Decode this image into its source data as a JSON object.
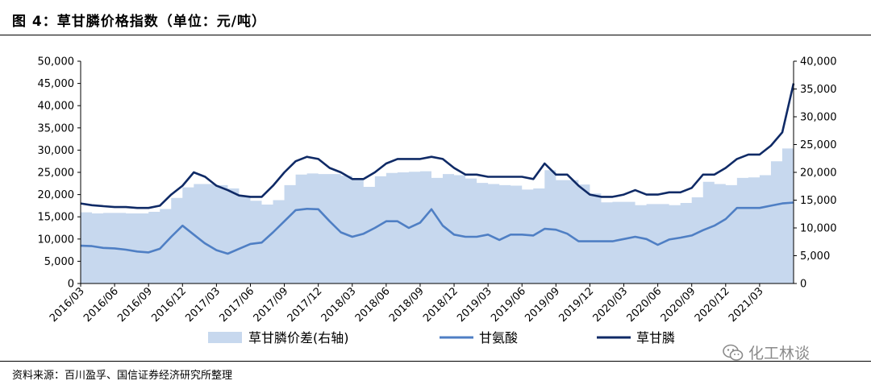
{
  "header": {
    "title": "图 4：草甘膦价格指数（单位：元/吨）"
  },
  "footer": {
    "source": "资料来源：百川盈孚、国信证券经济研究所整理"
  },
  "watermark": {
    "text": "化工林谈",
    "icon": "wechat-icon"
  },
  "colors": {
    "area": "#c7d8ee",
    "glycine": "#4f7fc4",
    "glyphosate": "#0f2a66"
  },
  "chart_data": {
    "type": "line",
    "x_type": "date",
    "x": [
      "2016/03",
      "2016/04",
      "2016/05",
      "2016/06",
      "2016/07",
      "2016/08",
      "2016/09",
      "2016/10",
      "2016/11",
      "2016/12",
      "2017/01",
      "2017/02",
      "2017/03",
      "2017/04",
      "2017/05",
      "2017/06",
      "2017/07",
      "2017/08",
      "2017/09",
      "2017/10",
      "2017/11",
      "2017/12",
      "2018/01",
      "2018/02",
      "2018/03",
      "2018/04",
      "2018/05",
      "2018/06",
      "2018/07",
      "2018/08",
      "2018/09",
      "2018/10",
      "2018/11",
      "2018/12",
      "2019/01",
      "2019/02",
      "2019/03",
      "2019/04",
      "2019/05",
      "2019/06",
      "2019/07",
      "2019/08",
      "2019/09",
      "2019/10",
      "2019/11",
      "2019/12",
      "2020/01",
      "2020/02",
      "2020/03",
      "2020/04",
      "2020/05",
      "2020/06",
      "2020/07",
      "2020/08",
      "2020/09",
      "2020/10",
      "2020/11",
      "2020/12",
      "2021/01",
      "2021/02",
      "2021/03",
      "2021/04",
      "2021/05",
      "2021/06"
    ],
    "x_tick_labels": [
      "2016/03",
      "2016/06",
      "2016/09",
      "2016/12",
      "2017/03",
      "2017/06",
      "2017/09",
      "2017/12",
      "2018/03",
      "2018/06",
      "2018/09",
      "2018/12",
      "2019/03",
      "2019/06",
      "2019/09",
      "2019/12",
      "2020/03",
      "2020/06",
      "2020/09",
      "2020/12",
      "2021/03"
    ],
    "y_left": {
      "range": [
        0,
        50000
      ],
      "ticks": [
        0,
        5000,
        10000,
        15000,
        20000,
        25000,
        30000,
        35000,
        40000,
        45000,
        50000
      ],
      "tick_labels": [
        "0",
        "5,000",
        "10,000",
        "15,000",
        "20,000",
        "25,000",
        "30,000",
        "35,000",
        "40,000",
        "45,000",
        "50,000"
      ]
    },
    "y_right": {
      "range": [
        0,
        40000
      ],
      "ticks": [
        0,
        5000,
        10000,
        15000,
        20000,
        25000,
        30000,
        35000,
        40000
      ],
      "tick_labels": [
        "0",
        "5,000",
        "10,000",
        "15,000",
        "20,000",
        "25,000",
        "30,000",
        "35,000",
        "40,000"
      ]
    },
    "series": [
      {
        "name": "草甘膦价差(右轴)",
        "type": "area",
        "axis": "right",
        "values": [
          12800,
          12600,
          12700,
          12700,
          12600,
          12600,
          12900,
          13400,
          15400,
          17300,
          17900,
          17900,
          17700,
          17100,
          15800,
          14900,
          14200,
          15000,
          17700,
          19600,
          19800,
          19700,
          19700,
          19400,
          18800,
          17400,
          19300,
          19900,
          20000,
          20100,
          20200,
          19000,
          19700,
          19500,
          18900,
          18100,
          17900,
          17700,
          17600,
          16900,
          17100,
          20400,
          18600,
          18600,
          17800,
          16200,
          14600,
          14700,
          14700,
          14100,
          14300,
          14300,
          14100,
          14500,
          15500,
          18300,
          17900,
          17700,
          19000,
          19100,
          19500,
          22000,
          24300,
          30600
        ]
      },
      {
        "name": "甘氨酸",
        "type": "line",
        "axis": "left",
        "values": [
          8500,
          8400,
          8000,
          7900,
          7600,
          7200,
          7000,
          7800,
          10500,
          13000,
          11000,
          9000,
          7500,
          6700,
          7800,
          8900,
          9200,
          11500,
          14000,
          16500,
          16800,
          16700,
          14000,
          11500,
          10500,
          11200,
          12500,
          14000,
          14000,
          12500,
          13700,
          16700,
          13000,
          11000,
          10500,
          10500,
          11000,
          9800,
          11000,
          11000,
          10800,
          12300,
          12100,
          11200,
          9500,
          9500,
          9500,
          9500,
          10000,
          10500,
          10000,
          8700,
          9900,
          10300,
          10800,
          12000,
          13000,
          14500,
          17000,
          17000,
          17000,
          17500,
          18000,
          18200
        ]
      },
      {
        "name": "草甘膦",
        "type": "line",
        "axis": "left",
        "values": [
          18000,
          17600,
          17400,
          17200,
          17200,
          17000,
          17000,
          17500,
          20000,
          22000,
          25000,
          24000,
          22000,
          21000,
          19800,
          19500,
          19500,
          22000,
          25000,
          27500,
          28500,
          28000,
          26000,
          25000,
          23500,
          23500,
          25000,
          27000,
          28000,
          28000,
          28000,
          28500,
          28000,
          26000,
          24500,
          24500,
          24000,
          24000,
          24000,
          24000,
          23500,
          27000,
          24500,
          24500,
          22000,
          20000,
          19500,
          19500,
          20000,
          21000,
          20000,
          20000,
          20500,
          20500,
          21500,
          24500,
          24500,
          26000,
          28000,
          29000,
          29000,
          31000,
          34000,
          45000
        ]
      }
    ],
    "legend": [
      "草甘膦价差(右轴)",
      "甘氨酸",
      "草甘膦"
    ],
    "legend_position": "bottom",
    "grid": false
  }
}
